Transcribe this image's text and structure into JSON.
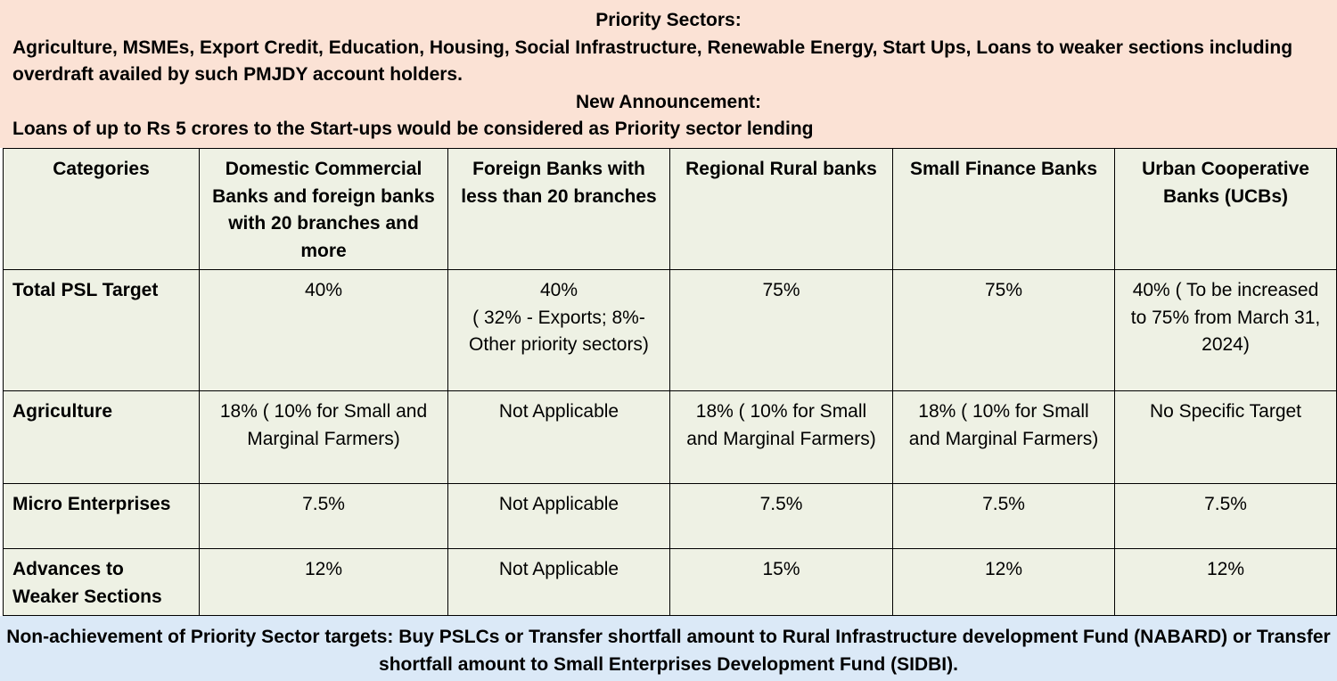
{
  "header": {
    "priority_title": "Priority Sectors:",
    "priority_line": "Agriculture, MSMEs, Export Credit, Education, Housing, Social Infrastructure, Renewable Energy, Start Ups, Loans to weaker sections including overdraft availed by such PMJDY account holders.",
    "announcement_title": "New Announcement:",
    "announcement_line": "Loans of up to Rs 5 crores to the Start-ups would be considered as Priority sector lending"
  },
  "table": {
    "headers": [
      "Categories",
      "Domestic Commercial Banks and foreign banks with 20 branches and more",
      "Foreign Banks with less than 20 branches",
      "Regional Rural banks",
      "Small Finance Banks",
      "Urban Cooperative Banks (UCBs)"
    ],
    "rows": [
      {
        "category": "Total PSL Target",
        "values": [
          "40%",
          "40%\n( 32% - Exports; 8%- Other priority sectors)",
          "75%",
          "75%",
          "40% ( To be increased to 75% from March 31, 2024)"
        ]
      },
      {
        "category": "Agriculture",
        "values": [
          "18% ( 10% for Small and Marginal Farmers)",
          "Not Applicable",
          "18% ( 10% for Small and Marginal Farmers)",
          "18% ( 10% for Small and Marginal Farmers)",
          "No Specific Target"
        ]
      },
      {
        "category": "Micro Enterprises",
        "values": [
          "7.5%",
          "Not Applicable",
          "7.5%",
          "7.5%",
          "7.5%"
        ]
      },
      {
        "category": "Advances to Weaker Sections",
        "values": [
          "12%",
          "Not Applicable",
          "15%",
          "12%",
          "12%"
        ]
      }
    ]
  },
  "footer": {
    "text": "Non-achievement of Priority Sector targets: Buy PSLCs or Transfer shortfall amount to Rural Infrastructure development Fund (NABARD) or Transfer shortfall amount to Small Enterprises Development Fund (SIDBI)."
  },
  "colors": {
    "top_background": "#fbe2d5",
    "table_background": "#eef1e4",
    "bottom_background": "#dbe9f7",
    "border": "#000000"
  }
}
